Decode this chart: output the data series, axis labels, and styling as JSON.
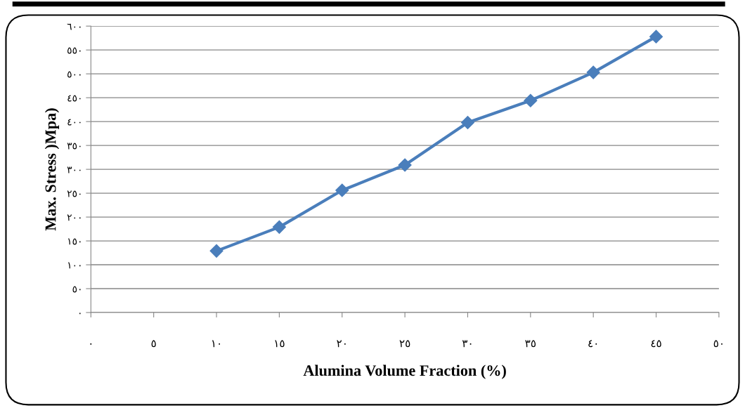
{
  "chart_data": {
    "type": "line",
    "xlabel": "Alumina Volume Fraction (%)",
    "ylabel": "Max. Stress )Mpa)",
    "x": [
      10,
      15,
      20,
      25,
      30,
      35,
      40,
      45
    ],
    "series": [
      {
        "color": "#4a7ebb",
        "values": [
          129,
          179,
          256,
          309,
          398,
          444,
          503,
          578
        ]
      }
    ],
    "xlim": [
      0,
      50
    ],
    "xticks": [
      {
        "value": 0,
        "label": "٠"
      },
      {
        "value": 5,
        "label": "٥"
      },
      {
        "value": 10,
        "label": "١٠"
      },
      {
        "value": 15,
        "label": "١٥"
      },
      {
        "value": 20,
        "label": "٢٠"
      },
      {
        "value": 25,
        "label": "٢٥"
      },
      {
        "value": 30,
        "label": "٣٠"
      },
      {
        "value": 35,
        "label": "٣٥"
      },
      {
        "value": 40,
        "label": "٤٠"
      },
      {
        "value": 45,
        "label": "٤٥"
      },
      {
        "value": 50,
        "label": "٥٠"
      }
    ],
    "ylim": [
      0,
      600
    ],
    "yticks": [
      {
        "value": 0,
        "label": "٠"
      },
      {
        "value": 50,
        "label": "٥٠"
      },
      {
        "value": 100,
        "label": "١٠٠"
      },
      {
        "value": 150,
        "label": "١٥٠"
      },
      {
        "value": 200,
        "label": "٢٠٠"
      },
      {
        "value": 250,
        "label": "٢٥٠"
      },
      {
        "value": 300,
        "label": "٣٠٠"
      },
      {
        "value": 350,
        "label": "٣٥٠"
      },
      {
        "value": 400,
        "label": "٤٠٠"
      },
      {
        "value": 450,
        "label": "٤٥٠"
      },
      {
        "value": 500,
        "label": "٥٠٠"
      },
      {
        "value": 550,
        "label": "٥٥٠"
      },
      {
        "value": 600,
        "label": "٦٠٠"
      }
    ],
    "grid": "y",
    "marker": "diamond",
    "line_style": "solid",
    "legend": false
  }
}
